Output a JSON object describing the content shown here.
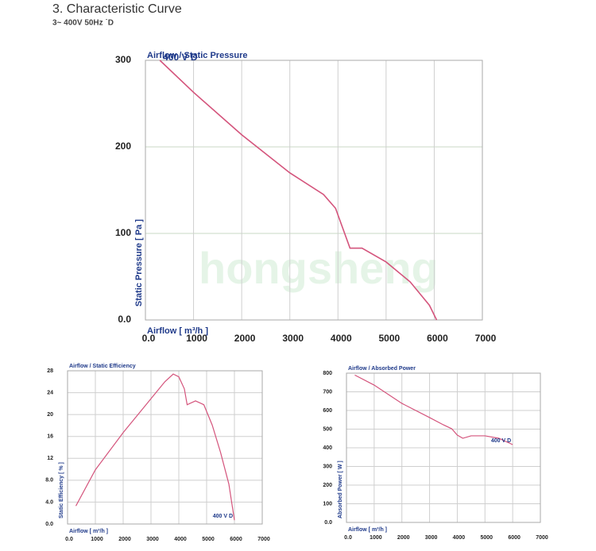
{
  "header": {
    "title": "3. Characteristic Curve",
    "subtitle": "3~ 400V 50Hz ˙D"
  },
  "watermark": "hongsheng",
  "chart_data": [
    {
      "type": "line",
      "title": "Airflow / Static Pressure",
      "xlabel": "Airflow [ m³/h ]",
      "ylabel": "Static Pressure [ Pa ]",
      "xlim": [
        0,
        7000
      ],
      "ylim": [
        0,
        300
      ],
      "xticks": [
        {
          "value": 0,
          "label": "0.0"
        },
        1000,
        2000,
        3000,
        4000,
        5000,
        6000,
        7000
      ],
      "yticks": [
        {
          "value": 0,
          "label": "0.0"
        },
        100,
        200,
        300
      ],
      "grid": true,
      "series": [
        {
          "name": "400 V D",
          "color": "#d4547c",
          "x": [
            300,
            1000,
            2000,
            3000,
            3700,
            3950,
            4250,
            4500,
            5000,
            5500,
            5900,
            6050
          ],
          "values": [
            300,
            263,
            214,
            170,
            145,
            129,
            83,
            83,
            67,
            44,
            17,
            0
          ]
        }
      ]
    },
    {
      "type": "line",
      "title": "Airflow / Static Efficiency",
      "xlabel": "Airflow [ m³/h ]",
      "ylabel": "Static Efficiency [ % ]",
      "xlim": [
        0,
        7000
      ],
      "ylim": [
        0,
        28
      ],
      "xticks": [
        {
          "value": 0,
          "label": "0.0"
        },
        1000,
        2000,
        3000,
        4000,
        5000,
        6000,
        7000
      ],
      "yticks": [
        {
          "value": 0,
          "label": "0.0"
        },
        {
          "value": 4,
          "label": "4.0"
        },
        {
          "value": 8,
          "label": "8.0"
        },
        12,
        16,
        20,
        24,
        28
      ],
      "grid": true,
      "series": [
        {
          "name": "400 V D",
          "color": "#d4547c",
          "x": [
            300,
            1000,
            2000,
            3000,
            3500,
            3800,
            4000,
            4200,
            4300,
            4600,
            4900,
            5200,
            5500,
            5800,
            6000
          ],
          "values": [
            3.3,
            9.9,
            16.7,
            22.9,
            26,
            27.4,
            26.9,
            24.7,
            21.8,
            22.5,
            21.8,
            18.1,
            13.1,
            7.3,
            0.7
          ]
        }
      ]
    },
    {
      "type": "line",
      "title": "Airflow / Absorbed Power",
      "xlabel": "Airflow [ m³/h ]",
      "ylabel": "Absorbed Power [ W ]",
      "xlim": [
        0,
        7000
      ],
      "ylim": [
        0,
        800
      ],
      "xticks": [
        {
          "value": 0,
          "label": "0.0"
        },
        1000,
        2000,
        3000,
        4000,
        5000,
        6000,
        7000
      ],
      "yticks": [
        {
          "value": 0,
          "label": "0.0"
        },
        100,
        200,
        300,
        400,
        500,
        600,
        700,
        800
      ],
      "grid": true,
      "series": [
        {
          "name": "400 V D",
          "color": "#d4547c",
          "x": [
            300,
            1000,
            2000,
            3000,
            3500,
            3800,
            4000,
            4200,
            4500,
            5000,
            5500,
            6000
          ],
          "values": [
            790,
            736,
            638,
            562,
            523,
            502,
            468,
            451,
            464,
            464,
            451,
            417
          ]
        }
      ]
    }
  ]
}
